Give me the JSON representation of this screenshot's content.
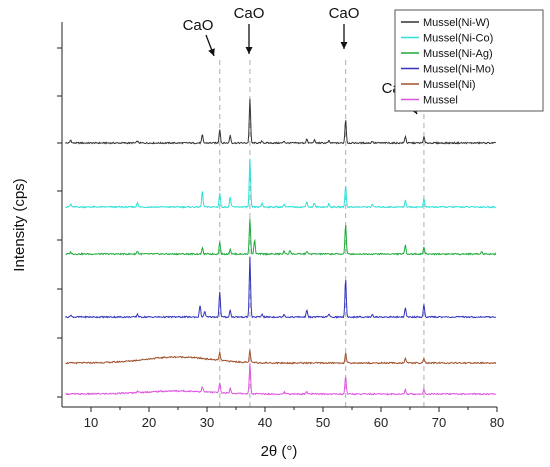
{
  "chart_data": {
    "type": "line",
    "xlabel": "2θ (°)",
    "ylabel": "Intensity (cps)",
    "xlim": [
      5,
      80
    ],
    "x_ticks": [
      "10",
      "20",
      "30",
      "40",
      "50",
      "60",
      "70",
      "80"
    ],
    "y_ticks_labeled": false,
    "grid": false,
    "legend_position": "top-right",
    "reference_lines": [
      {
        "x": 32.2,
        "label": "CaO"
      },
      {
        "x": 37.4,
        "label": "CaO"
      },
      {
        "x": 53.9,
        "label": "CaO"
      },
      {
        "x": 67.4,
        "label": "CaO"
      }
    ],
    "series": [
      {
        "name": "Mussel(Ni-W)",
        "color": "#333333",
        "baseline": 5,
        "hump": 0,
        "peaks": [
          [
            6.5,
            3
          ],
          [
            18,
            2
          ],
          [
            29.2,
            8
          ],
          [
            32.2,
            14
          ],
          [
            34,
            8
          ],
          [
            37.4,
            44
          ],
          [
            39.5,
            2
          ],
          [
            43.3,
            2
          ],
          [
            47.2,
            4
          ],
          [
            48.5,
            3
          ],
          [
            51,
            2
          ],
          [
            53.9,
            24
          ],
          [
            58.5,
            2
          ],
          [
            64.2,
            7
          ],
          [
            67.4,
            6
          ]
        ]
      },
      {
        "name": "Mussel(Ni-Co)",
        "color": "#2ee0d8",
        "baseline": 4,
        "hump": 0,
        "peaks": [
          [
            6.5,
            3
          ],
          [
            18,
            5
          ],
          [
            29.2,
            16
          ],
          [
            32.2,
            14
          ],
          [
            34,
            10
          ],
          [
            37.4,
            48
          ],
          [
            39.5,
            4
          ],
          [
            43.3,
            3
          ],
          [
            47.2,
            6
          ],
          [
            48.5,
            4
          ],
          [
            51,
            3
          ],
          [
            53.9,
            22
          ],
          [
            58.5,
            3
          ],
          [
            64.2,
            7
          ],
          [
            67.4,
            8
          ]
        ]
      },
      {
        "name": "Mussel(Ni-Ag)",
        "color": "#1faa3a",
        "baseline": 4,
        "hump": 0,
        "peaks": [
          [
            6.5,
            2
          ],
          [
            18,
            3
          ],
          [
            29.2,
            6
          ],
          [
            32.2,
            12
          ],
          [
            34,
            5
          ],
          [
            37.4,
            36
          ],
          [
            38.2,
            14
          ],
          [
            43.3,
            3
          ],
          [
            44.3,
            4
          ],
          [
            47.2,
            3
          ],
          [
            53.9,
            30
          ],
          [
            64.2,
            9
          ],
          [
            67.4,
            7
          ],
          [
            77.4,
            3
          ]
        ]
      },
      {
        "name": "Mussel(Ni-Mo)",
        "color": "#3333bb",
        "baseline": 3,
        "hump": 0,
        "peaks": [
          [
            6.5,
            2
          ],
          [
            18,
            3
          ],
          [
            28.8,
            12
          ],
          [
            29.6,
            6
          ],
          [
            32.2,
            25
          ],
          [
            34,
            7
          ],
          [
            37.4,
            60
          ],
          [
            39.5,
            3
          ],
          [
            43.3,
            3
          ],
          [
            47.2,
            7
          ],
          [
            51,
            3
          ],
          [
            53.9,
            38
          ],
          [
            58.5,
            3
          ],
          [
            64.2,
            9
          ],
          [
            67.4,
            12
          ]
        ]
      },
      {
        "name": "Mussel(Ni)",
        "color": "#a0522d",
        "baseline": 2,
        "hump": 6,
        "peaks": [
          [
            32.2,
            8
          ],
          [
            37.4,
            12
          ],
          [
            53.9,
            10
          ],
          [
            64.2,
            5
          ],
          [
            67.4,
            5
          ]
        ]
      },
      {
        "name": "Mussel",
        "color": "#dd55dd",
        "baseline": 2,
        "hump": 3,
        "peaks": [
          [
            18,
            2
          ],
          [
            29.2,
            5
          ],
          [
            32.2,
            10
          ],
          [
            34,
            5
          ],
          [
            37.4,
            30
          ],
          [
            43.3,
            2
          ],
          [
            47.2,
            3
          ],
          [
            53.9,
            18
          ],
          [
            64.2,
            4
          ],
          [
            67.4,
            5
          ]
        ]
      }
    ]
  }
}
